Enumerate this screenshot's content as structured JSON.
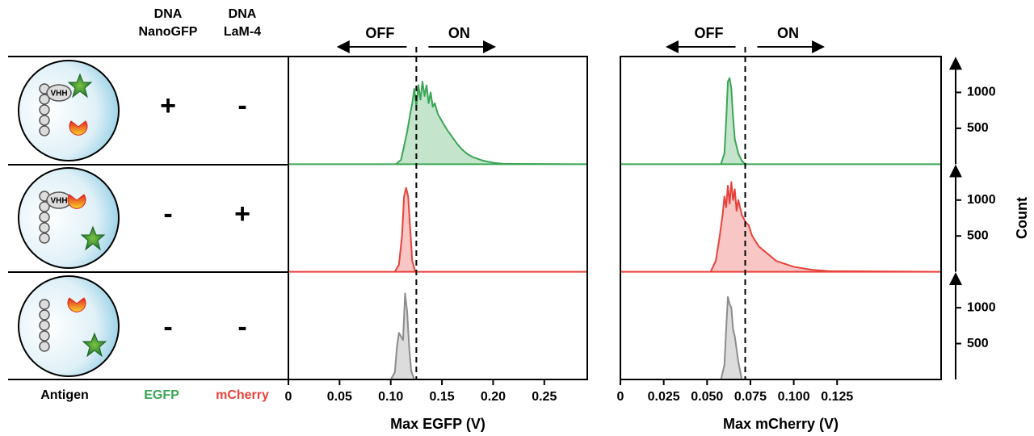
{
  "table": {
    "headers": [
      [
        "DNA",
        "NanoGFP"
      ],
      [
        "DNA",
        "LaM-4"
      ]
    ],
    "rows": [
      [
        "+",
        "-"
      ],
      [
        "-",
        "+"
      ],
      [
        "-",
        "-"
      ]
    ],
    "footer": [
      "Antigen",
      "EGFP",
      "mCherry"
    ],
    "vhh": "VHH"
  },
  "chart_data": [
    {
      "type": "area",
      "xlabel": "Max EGFP (V)",
      "off_label": "OFF",
      "on_label": "ON",
      "threshold": 0.125,
      "xlim": [
        0,
        0.292
      ],
      "xticks": [
        0,
        0.05,
        {
          "value": 0.1,
          "label": "0.10"
        },
        0.15,
        {
          "value": 0.2,
          "label": "0.20"
        },
        0.25
      ],
      "ylim": [
        0,
        1500
      ],
      "series": [
        {
          "color": "#3aa655",
          "x": [
            0,
            0.105,
            0.11,
            0.113,
            0.116,
            0.119,
            0.121,
            0.123,
            0.125,
            0.127,
            0.129,
            0.131,
            0.133,
            0.135,
            0.137,
            0.139,
            0.141,
            0.143,
            0.146,
            0.15,
            0.155,
            0.16,
            0.165,
            0.17,
            0.175,
            0.18,
            0.19,
            0.2,
            0.21,
            0.292
          ],
          "values": [
            0,
            0,
            60,
            250,
            450,
            700,
            850,
            1050,
            800,
            1100,
            900,
            1150,
            950,
            1100,
            850,
            1000,
            800,
            850,
            700,
            600,
            480,
            380,
            280,
            200,
            140,
            100,
            50,
            20,
            5,
            0
          ]
        },
        {
          "color": "#e8423a",
          "x": [
            0,
            0.104,
            0.108,
            0.111,
            0.113,
            0.115,
            0.117,
            0.119,
            0.121,
            0.124,
            0.292
          ],
          "values": [
            0,
            0,
            100,
            500,
            1050,
            1170,
            1050,
            600,
            150,
            0,
            0
          ]
        },
        {
          "color": "#8c8c8c",
          "x": [
            0,
            0.1,
            0.104,
            0.106,
            0.108,
            0.11,
            0.112,
            0.114,
            0.116,
            0.118,
            0.12,
            0.123,
            0.292
          ],
          "values": [
            0,
            0,
            100,
            450,
            650,
            600,
            550,
            1200,
            950,
            450,
            120,
            0,
            0
          ]
        }
      ]
    },
    {
      "type": "area",
      "xlabel": "Max mCherry (V)",
      "off_label": "OFF",
      "on_label": "ON",
      "threshold": 0.072,
      "xlim": [
        0,
        0.185
      ],
      "xticks": [
        0,
        0.025,
        {
          "value": 0.05,
          "label": "0.050"
        },
        0.075,
        {
          "value": 0.1,
          "label": "0.100"
        },
        0.125
      ],
      "ylim": [
        0,
        1500
      ],
      "yticks": [
        500,
        1000
      ],
      "ylabel": "Count",
      "series": [
        {
          "color": "#3aa655",
          "x": [
            0,
            0.058,
            0.06,
            0.061,
            0.062,
            0.063,
            0.064,
            0.065,
            0.066,
            0.068,
            0.07,
            0.072,
            0.185
          ],
          "values": [
            0,
            0,
            150,
            600,
            1150,
            1200,
            1050,
            650,
            350,
            150,
            50,
            0,
            0
          ]
        },
        {
          "color": "#e8423a",
          "x": [
            0,
            0.052,
            0.055,
            0.057,
            0.059,
            0.06,
            0.061,
            0.062,
            0.063,
            0.064,
            0.065,
            0.066,
            0.067,
            0.068,
            0.07,
            0.072,
            0.074,
            0.076,
            0.08,
            0.085,
            0.09,
            0.1,
            0.11,
            0.12,
            0.185
          ],
          "values": [
            0,
            0,
            150,
            450,
            800,
            1050,
            900,
            1200,
            950,
            1250,
            1000,
            1150,
            850,
            1000,
            800,
            700,
            650,
            500,
            350,
            250,
            150,
            70,
            30,
            10,
            0
          ]
        },
        {
          "color": "#8c8c8c",
          "x": [
            0,
            0.058,
            0.06,
            0.061,
            0.062,
            0.063,
            0.064,
            0.065,
            0.066,
            0.068,
            0.07,
            0.185
          ],
          "values": [
            0,
            0,
            200,
            700,
            1150,
            1050,
            1000,
            700,
            600,
            250,
            0,
            0
          ]
        }
      ]
    }
  ]
}
